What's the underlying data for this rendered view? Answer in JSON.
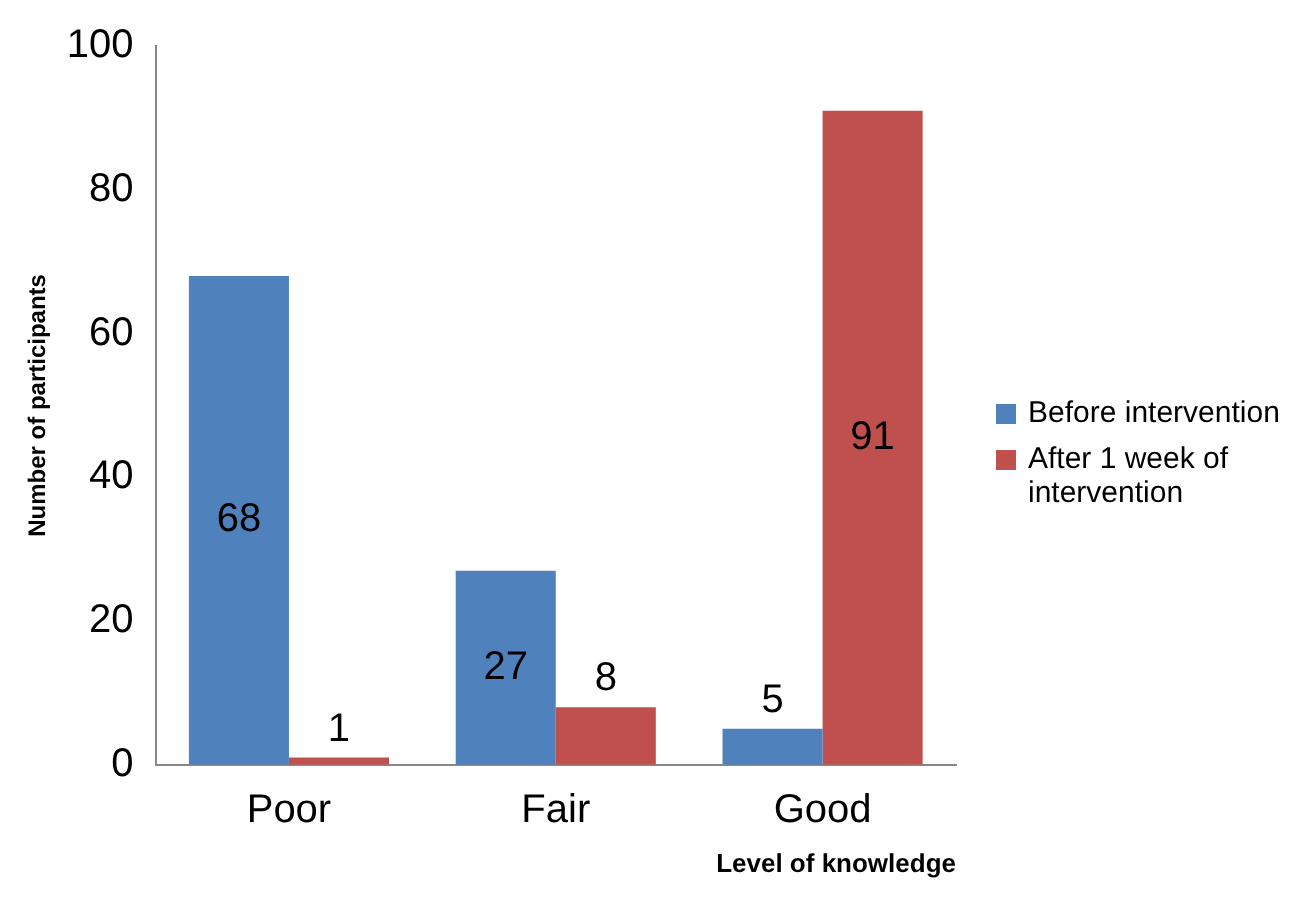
{
  "chart_data": {
    "type": "bar",
    "xlabel": "Level of knowledge",
    "ylabel": "Number of participants",
    "categories": [
      "Poor",
      "Fair",
      "Good"
    ],
    "series": [
      {
        "name": "Before intervention",
        "color": "#4f81bd",
        "values": [
          68,
          27,
          5
        ]
      },
      {
        "name": "After 1 week of intervention",
        "color": "#c0504d",
        "values": [
          1,
          8,
          91
        ]
      }
    ],
    "ylim": [
      0,
      100
    ],
    "yticks": [
      0,
      20,
      40,
      60,
      80,
      100
    ],
    "grid": false,
    "legend": "right",
    "data_labels": true
  }
}
